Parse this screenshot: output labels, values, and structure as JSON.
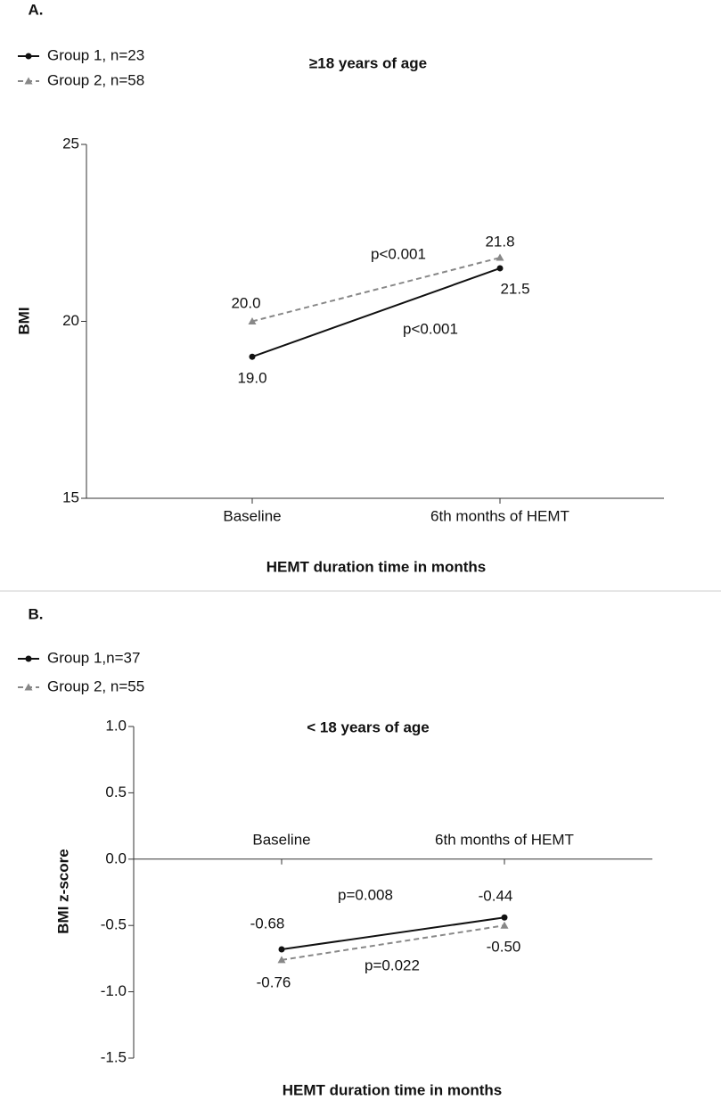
{
  "chart_data": [
    {
      "type": "line",
      "panel": "A.",
      "title": "≥18 years of age",
      "ylabel": "BMI",
      "xlabel": "HEMT duration time in months",
      "categories": [
        "Baseline",
        "6th months of HEMT"
      ],
      "series": [
        {
          "name": "Group 1, n=23",
          "color": "#111111",
          "line_style": "solid",
          "marker": "circle",
          "values": [
            19.0,
            21.5
          ],
          "value_labels": [
            "19.0",
            "21.5"
          ]
        },
        {
          "name": "Group 2, n=58",
          "color": "#888888",
          "line_style": "dashed",
          "marker": "triangle",
          "values": [
            20.0,
            21.8
          ],
          "value_labels": [
            "20.0",
            "21.8"
          ]
        }
      ],
      "annotations": [
        "p<0.001",
        "p<0.001"
      ],
      "ylim": [
        15,
        25
      ],
      "yticks": [
        15,
        20,
        25
      ]
    },
    {
      "type": "line",
      "panel": "B.",
      "title": "< 18 years of age",
      "ylabel": "BMI z-score",
      "xlabel": "HEMT duration time in months",
      "categories": [
        "Baseline",
        "6th months of HEMT"
      ],
      "series": [
        {
          "name": "Group 1,n=37",
          "color": "#111111",
          "line_style": "solid",
          "marker": "circle",
          "values": [
            -0.68,
            -0.44
          ],
          "value_labels": [
            "-0.68",
            "-0.44"
          ]
        },
        {
          "name": "Group 2, n=55",
          "color": "#888888",
          "line_style": "dashed",
          "marker": "triangle",
          "values": [
            -0.76,
            -0.5
          ],
          "value_labels": [
            "-0.76",
            "-0.50"
          ]
        }
      ],
      "annotations": [
        "p=0.008",
        "p=0.022"
      ],
      "ylim": [
        -1.5,
        1.0
      ],
      "yticks": [
        -1.5,
        {
          "value": -1,
          "label": "-1.0"
        },
        -0.5,
        {
          "value": 0,
          "label": "0.0"
        },
        0.5,
        {
          "value": 1,
          "label": "1.0"
        }
      ]
    }
  ]
}
